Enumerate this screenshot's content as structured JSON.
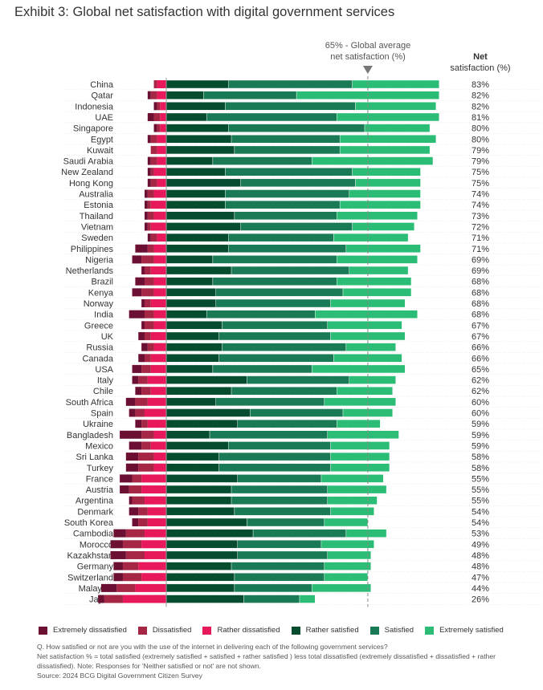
{
  "chart_data": {
    "type": "bar",
    "orientation": "horizontal-diverging-stacked",
    "title": "Exhibit 3: Global net satisfaction with digital government services",
    "unit": "%",
    "reference_line": {
      "value": 65,
      "label_line1": "65% - Global average",
      "label_line2": "net satisfaction (%)"
    },
    "net_header": {
      "bold": "Net",
      "rest": "satisfaction (%)"
    },
    "series": [
      {
        "name": "Extremely dissatisfied",
        "color": "#6b0f33",
        "side": "negative"
      },
      {
        "name": "Dissatisfied",
        "color": "#a62645",
        "side": "negative"
      },
      {
        "name": "Rather dissatisfied",
        "color": "#e8195a",
        "side": "negative"
      },
      {
        "name": "Rather satisfied",
        "color": "#054d2e",
        "side": "positive"
      },
      {
        "name": "Satisfied",
        "color": "#1a7a55",
        "side": "positive"
      },
      {
        "name": "Extremely satisfied",
        "color": "#2bbd75",
        "side": "positive"
      }
    ],
    "rows": [
      {
        "country": "China",
        "values": [
          0,
          1,
          3,
          20,
          40,
          28
        ],
        "net": "83%"
      },
      {
        "country": "Qatar",
        "values": [
          1,
          2,
          3,
          12,
          30,
          46
        ],
        "net": "82%"
      },
      {
        "country": "Indonesia",
        "values": [
          1,
          1,
          2,
          19,
          42,
          26
        ],
        "net": "82%"
      },
      {
        "country": "UAE",
        "values": [
          2,
          2,
          2,
          13,
          42,
          33
        ],
        "net": "81%"
      },
      {
        "country": "Singapore",
        "values": [
          1,
          1,
          2,
          20,
          44,
          21
        ],
        "net": "80%"
      },
      {
        "country": "Egypt",
        "values": [
          1,
          2,
          3,
          21,
          35,
          31
        ],
        "net": "80%"
      },
      {
        "country": "Kuwait",
        "values": [
          0,
          2,
          3,
          22,
          34,
          29
        ],
        "net": "79%"
      },
      {
        "country": "Saudi Arabia",
        "values": [
          1,
          2,
          3,
          15,
          32,
          39
        ],
        "net": "79%"
      },
      {
        "country": "New Zealand",
        "values": [
          1,
          1,
          4,
          19,
          41,
          22
        ],
        "net": "75%"
      },
      {
        "country": "Hong Kong",
        "values": [
          1,
          2,
          3,
          24,
          37,
          21
        ],
        "net": "75%"
      },
      {
        "country": "Australia",
        "values": [
          1,
          2,
          4,
          19,
          40,
          23
        ],
        "net": "74%"
      },
      {
        "country": "Estonia",
        "values": [
          1,
          1,
          5,
          19,
          37,
          26
        ],
        "net": "74%"
      },
      {
        "country": "Thailand",
        "values": [
          1,
          2,
          4,
          22,
          33,
          26
        ],
        "net": "73%"
      },
      {
        "country": "Vietnam",
        "values": [
          1,
          1,
          5,
          24,
          36,
          20
        ],
        "net": "72%"
      },
      {
        "country": "Sweden",
        "values": [
          1,
          2,
          3,
          20,
          34,
          24
        ],
        "net": "71%"
      },
      {
        "country": "Philippines",
        "values": [
          4,
          2,
          4,
          20,
          38,
          24
        ],
        "net": "71%"
      },
      {
        "country": "Nigeria",
        "values": [
          3,
          4,
          4,
          15,
          40,
          26
        ],
        "net": "69%"
      },
      {
        "country": "Netherlands",
        "values": [
          1,
          2,
          5,
          21,
          38,
          19
        ],
        "net": "69%"
      },
      {
        "country": "Brazil",
        "values": [
          3,
          3,
          4,
          15,
          40,
          24
        ],
        "net": "68%"
      },
      {
        "country": "Kenya",
        "values": [
          3,
          4,
          4,
          16,
          41,
          22
        ],
        "net": "68%"
      },
      {
        "country": "Norway",
        "values": [
          1,
          2,
          5,
          16,
          37,
          24
        ],
        "net": "68%"
      },
      {
        "country": "India",
        "values": [
          5,
          3,
          4,
          13,
          35,
          33
        ],
        "net": "68%"
      },
      {
        "country": "Greece",
        "values": [
          1,
          3,
          4,
          18,
          34,
          24
        ],
        "net": "67%"
      },
      {
        "country": "UK",
        "values": [
          2,
          2,
          5,
          17,
          36,
          24
        ],
        "net": "67%"
      },
      {
        "country": "Russia",
        "values": [
          2,
          2,
          4,
          18,
          40,
          16
        ],
        "net": "66%"
      },
      {
        "country": "Canada",
        "values": [
          2,
          2,
          5,
          17,
          37,
          22
        ],
        "net": "66%"
      },
      {
        "country": "USA",
        "values": [
          3,
          3,
          5,
          15,
          32,
          30
        ],
        "net": "65%"
      },
      {
        "country": "Italy",
        "values": [
          2,
          3,
          6,
          26,
          33,
          15
        ],
        "net": "62%"
      },
      {
        "country": "Chile",
        "values": [
          2,
          3,
          5,
          21,
          34,
          18
        ],
        "net": "62%"
      },
      {
        "country": "South Africa",
        "values": [
          3,
          4,
          6,
          16,
          35,
          23
        ],
        "net": "60%"
      },
      {
        "country": "Spain",
        "values": [
          2,
          3,
          7,
          27,
          30,
          16
        ],
        "net": "60%"
      },
      {
        "country": "Ukraine",
        "values": [
          2,
          2,
          6,
          23,
          32,
          14
        ],
        "net": "59%"
      },
      {
        "country": "Bangladesh",
        "values": [
          7,
          4,
          4,
          14,
          38,
          23
        ],
        "net": "59%"
      },
      {
        "country": "Mexico",
        "values": [
          4,
          3,
          5,
          20,
          33,
          19
        ],
        "net": "59%"
      },
      {
        "country": "Sri Lanka",
        "values": [
          4,
          5,
          4,
          17,
          36,
          19
        ],
        "net": "58%"
      },
      {
        "country": "Turkey",
        "values": [
          4,
          5,
          4,
          17,
          36,
          19
        ],
        "net": "58%"
      },
      {
        "country": "France",
        "values": [
          4,
          3,
          8,
          23,
          27,
          20
        ],
        "net": "55%"
      },
      {
        "country": "Austria",
        "values": [
          3,
          4,
          8,
          21,
          31,
          19
        ],
        "net": "55%"
      },
      {
        "country": "Argentina",
        "values": [
          1,
          4,
          7,
          21,
          31,
          16
        ],
        "net": "55%"
      },
      {
        "country": "Denmark",
        "values": [
          3,
          3,
          6,
          22,
          31,
          14
        ],
        "net": "54%"
      },
      {
        "country": "South Korea",
        "values": [
          2,
          3,
          6,
          26,
          25,
          14
        ],
        "net": "54%"
      },
      {
        "country": "Cambodia",
        "values": [
          4,
          6,
          7,
          28,
          30,
          13
        ],
        "net": "53%"
      },
      {
        "country": "Morocco",
        "values": [
          4,
          6,
          8,
          23,
          27,
          17
        ],
        "net": "49%"
      },
      {
        "country": "Kazakhstan",
        "values": [
          5,
          6,
          7,
          23,
          29,
          14
        ],
        "net": "48%"
      },
      {
        "country": "Germany",
        "values": [
          3,
          5,
          9,
          21,
          30,
          15
        ],
        "net": "48%"
      },
      {
        "country": "Switzerland",
        "values": [
          3,
          6,
          8,
          22,
          29,
          14
        ],
        "net": "47%"
      },
      {
        "country": "Malaysia",
        "values": [
          5,
          6,
          10,
          22,
          25,
          19
        ],
        "net": "44%"
      },
      {
        "country": "Japan",
        "values": [
          2,
          6,
          14,
          25,
          18,
          5
        ],
        "net": "26%"
      }
    ],
    "grid": "dotted horizontal row separators",
    "legend": "bottom"
  },
  "notes": {
    "question": "Q. How satisfied or not are you with the use of the internet in delivering each of the following government services?",
    "definition": "Net satisfaction % = total satisfied (extremely satisfied + satisfied + rather satisfied ) less total dissatisfied (extremely dissatisfied + dissatisfied + rather dissatisfied). Note: Responses for 'Neither satisfied or not' are not shown.",
    "source": "Source: 2024 BCG Digital Government Citizen Survey"
  }
}
